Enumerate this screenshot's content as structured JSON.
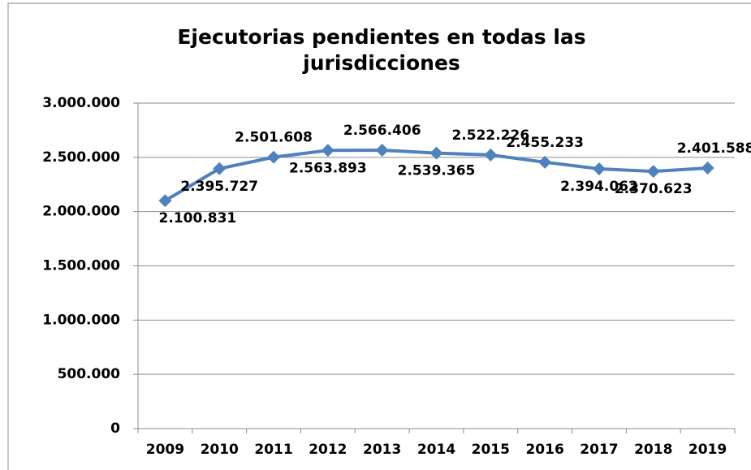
{
  "chart_data": {
    "type": "line",
    "title": "Ejecutorias pendientes en todas las jurisdicciones",
    "categories": [
      "2009",
      "2010",
      "2011",
      "2012",
      "2013",
      "2014",
      "2015",
      "2016",
      "2017",
      "2018",
      "2019"
    ],
    "series": [
      {
        "name": "Ejecutorias pendientes",
        "color": "#4f81bd",
        "values": [
          2100831,
          2395727,
          2501608,
          2563893,
          2566406,
          2539365,
          2522226,
          2455233,
          2394062,
          2370623,
          2401588
        ],
        "value_labels": [
          "2.100.831",
          "2.395.727",
          "2.501.608",
          "2.563.893",
          "2.566.406",
          "2.539.365",
          "2.522.226",
          "2.455.233",
          "2.394.062",
          "2.370.623",
          "2.401.588"
        ]
      }
    ],
    "ylim": [
      0,
      3000000
    ],
    "yticks": [
      0,
      {
        "value": 500000,
        "label": "500.000"
      },
      {
        "value": 1000000,
        "label": "1.000.000"
      },
      {
        "value": 1500000,
        "label": "1.500.000"
      },
      {
        "value": 2000000,
        "label": "2.000.000"
      },
      {
        "value": 2500000,
        "label": "2.500.000"
      },
      {
        "value": 3000000,
        "label": "3.000.000"
      }
    ],
    "grid": true
  }
}
